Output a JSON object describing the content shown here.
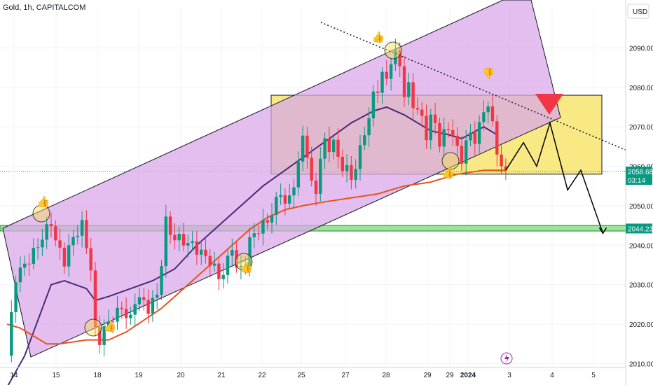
{
  "header": {
    "title": "Gold, 1h, CAPITALCOM"
  },
  "currency_button": {
    "label": "USD"
  },
  "chart_data": {
    "type": "candlestick",
    "title": "Gold, 1h, CAPITALCOM",
    "ylim": [
      2006,
      2100
    ],
    "y_ticks": [
      2010,
      2020,
      2030,
      2040,
      2050,
      2060,
      2070,
      2080,
      2090
    ],
    "y_tick_labels": [
      "2010.00",
      "2020.00",
      "2030.00",
      "2040.00",
      "2050.00",
      "2060.00",
      "2070.00",
      "2080.00",
      "2090.00"
    ],
    "x_tick_labels": [
      "14",
      "15",
      "18",
      "19",
      "20",
      "21",
      "22",
      "25",
      "27",
      "28",
      "29",
      "29",
      "2024",
      "3",
      "4",
      "5"
    ],
    "grid": true,
    "price_tags": [
      {
        "name": "last-price",
        "value": "2058.68",
        "countdown": "03:14",
        "color": "#089981"
      },
      {
        "name": "support-level",
        "value": "2044.23",
        "color": "#089981"
      }
    ],
    "close_path": [
      [
        0,
        2012
      ],
      [
        2,
        2032
      ],
      [
        4,
        2035
      ],
      [
        6,
        2038
      ],
      [
        8,
        2042
      ],
      [
        10,
        2046
      ],
      [
        11,
        2041
      ],
      [
        13,
        2036
      ],
      [
        15,
        2042
      ],
      [
        17,
        2045
      ],
      [
        18,
        2040
      ],
      [
        19,
        2034
      ],
      [
        20,
        2018
      ],
      [
        21,
        2016
      ],
      [
        22,
        2019
      ],
      [
        23,
        2020
      ],
      [
        24,
        2022
      ],
      [
        26,
        2024
      ],
      [
        28,
        2021
      ],
      [
        29,
        2026
      ],
      [
        30,
        2027
      ],
      [
        31,
        2025
      ],
      [
        32,
        2024
      ],
      [
        33,
        2026
      ],
      [
        34,
        2027
      ],
      [
        35,
        2036
      ],
      [
        36,
        2046
      ],
      [
        37,
        2043
      ],
      [
        38,
        2042
      ],
      [
        40,
        2041
      ],
      [
        42,
        2040
      ],
      [
        44,
        2038
      ],
      [
        46,
        2036
      ],
      [
        47,
        2034
      ],
      [
        48,
        2032
      ],
      [
        49,
        2033
      ],
      [
        50,
        2036
      ],
      [
        51,
        2040
      ],
      [
        52,
        2034
      ],
      [
        53,
        2034
      ],
      [
        54,
        2036
      ],
      [
        55,
        2041
      ],
      [
        56,
        2043
      ],
      [
        57,
        2044
      ],
      [
        58,
        2045
      ],
      [
        60,
        2048
      ],
      [
        62,
        2054
      ],
      [
        63,
        2050
      ],
      [
        64,
        2052
      ],
      [
        65,
        2056
      ],
      [
        66,
        2060
      ],
      [
        67,
        2068
      ],
      [
        68,
        2063
      ],
      [
        69,
        2055
      ],
      [
        70,
        2054
      ],
      [
        71,
        2062
      ],
      [
        72,
        2066
      ],
      [
        73,
        2065
      ],
      [
        74,
        2066
      ],
      [
        75,
        2062
      ],
      [
        76,
        2060
      ],
      [
        77,
        2059
      ],
      [
        78,
        2057
      ],
      [
        79,
        2060
      ],
      [
        80,
        2064
      ],
      [
        81,
        2069
      ],
      [
        82,
        2072
      ],
      [
        83,
        2078
      ],
      [
        84,
        2080
      ],
      [
        85,
        2083
      ],
      [
        86,
        2082
      ],
      [
        87,
        2087
      ],
      [
        88,
        2088
      ],
      [
        89,
        2086
      ],
      [
        90,
        2078
      ],
      [
        91,
        2080
      ],
      [
        92,
        2076
      ],
      [
        93,
        2074
      ],
      [
        94,
        2072
      ],
      [
        95,
        2068
      ],
      [
        96,
        2072
      ],
      [
        97,
        2071
      ],
      [
        98,
        2066
      ],
      [
        99,
        2068
      ],
      [
        100,
        2070
      ],
      [
        101,
        2068
      ],
      [
        102,
        2064
      ],
      [
        103,
        2062
      ],
      [
        104,
        2066
      ],
      [
        105,
        2068
      ],
      [
        106,
        2067
      ],
      [
        107,
        2070
      ],
      [
        108,
        2074
      ],
      [
        109,
        2076
      ],
      [
        110,
        2070
      ],
      [
        111,
        2064
      ],
      [
        112,
        2060
      ],
      [
        113,
        2058
      ]
    ],
    "indicators": [
      {
        "name": "ma-short",
        "color": "#4a2a7a",
        "values": [
          [
            0,
            2004
          ],
          [
            4,
            2012
          ],
          [
            10,
            2030
          ],
          [
            13,
            2031
          ],
          [
            18,
            2029
          ],
          [
            20,
            2026
          ],
          [
            23,
            2027
          ],
          [
            28,
            2029
          ],
          [
            33,
            2031
          ],
          [
            38,
            2034
          ],
          [
            43,
            2040
          ],
          [
            48,
            2045
          ],
          [
            53,
            2050
          ],
          [
            58,
            2055
          ],
          [
            63,
            2059
          ],
          [
            68,
            2063
          ],
          [
            73,
            2067
          ],
          [
            78,
            2071
          ],
          [
            83,
            2074
          ],
          [
            86,
            2075
          ],
          [
            90,
            2073
          ],
          [
            93,
            2071
          ],
          [
            96,
            2069
          ],
          [
            100,
            2068
          ],
          [
            103,
            2067
          ],
          [
            108,
            2070
          ],
          [
            111,
            2068
          ]
        ]
      },
      {
        "name": "ma-long",
        "color": "#e8531a",
        "values": [
          [
            0,
            2020
          ],
          [
            3,
            2019
          ],
          [
            6,
            2017
          ],
          [
            9,
            2015
          ],
          [
            12,
            2015
          ],
          [
            18,
            2016
          ],
          [
            23,
            2016
          ],
          [
            27,
            2018
          ],
          [
            31,
            2021
          ],
          [
            35,
            2024
          ],
          [
            39,
            2028
          ],
          [
            43,
            2032
          ],
          [
            47,
            2036
          ],
          [
            51,
            2040
          ],
          [
            55,
            2044
          ],
          [
            59,
            2047
          ],
          [
            63,
            2049
          ],
          [
            67,
            2050
          ],
          [
            72,
            2051
          ],
          [
            78,
            2052
          ],
          [
            84,
            2053
          ],
          [
            90,
            2055
          ],
          [
            96,
            2056
          ],
          [
            102,
            2058
          ],
          [
            108,
            2059
          ],
          [
            113,
            2059
          ]
        ]
      }
    ],
    "zones": [
      {
        "name": "resistance-zone",
        "from": 2058,
        "to": 2078,
        "fill": "#f5e050"
      },
      {
        "name": "support-band",
        "from": 2043.6,
        "to": 2045.0,
        "fill": "#9be59b"
      }
    ],
    "projection": [
      [
        113,
        2059
      ],
      [
        117,
        2066
      ],
      [
        120,
        2060
      ],
      [
        123,
        2071
      ],
      [
        127,
        2054
      ],
      [
        130,
        2059
      ],
      [
        135,
        2043
      ]
    ],
    "annotations": [
      {
        "name": "thumbs-up-1",
        "kind": "up"
      },
      {
        "name": "thumbs-up-2",
        "kind": "up"
      },
      {
        "name": "thumbs-up-3",
        "kind": "up"
      },
      {
        "name": "thumbs-up-4",
        "kind": "up"
      },
      {
        "name": "thumbs-up-5",
        "kind": "up"
      },
      {
        "name": "thumbs-down-1",
        "kind": "down"
      }
    ],
    "colors": {
      "up": "#089981",
      "down": "#f23645",
      "channel": "#d9a8e8",
      "marker": "#f23645"
    }
  }
}
